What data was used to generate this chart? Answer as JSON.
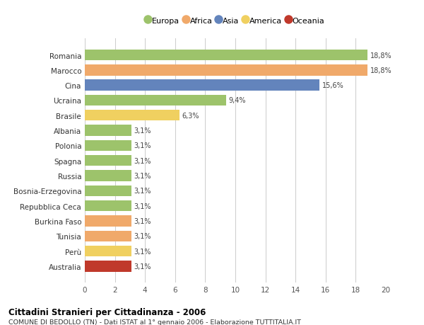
{
  "categories": [
    "Romania",
    "Marocco",
    "Cina",
    "Ucraina",
    "Brasile",
    "Albania",
    "Polonia",
    "Spagna",
    "Russia",
    "Bosnia-Erzegovina",
    "Repubblica Ceca",
    "Burkina Faso",
    "Tunisia",
    "Perù",
    "Australia"
  ],
  "values": [
    18.8,
    18.8,
    15.6,
    9.4,
    6.3,
    3.1,
    3.1,
    3.1,
    3.1,
    3.1,
    3.1,
    3.1,
    3.1,
    3.1,
    3.1
  ],
  "labels": [
    "18,8%",
    "18,8%",
    "15,6%",
    "9,4%",
    "6,3%",
    "3,1%",
    "3,1%",
    "3,1%",
    "3,1%",
    "3,1%",
    "3,1%",
    "3,1%",
    "3,1%",
    "3,1%",
    "3,1%"
  ],
  "colors": [
    "#9dc36b",
    "#f0a96a",
    "#6384bc",
    "#9dc36b",
    "#f0d060",
    "#9dc36b",
    "#9dc36b",
    "#9dc36b",
    "#9dc36b",
    "#9dc36b",
    "#9dc36b",
    "#f0a96a",
    "#f0a96a",
    "#f0d060",
    "#c0392b"
  ],
  "continent_colors": {
    "Europa": "#9dc36b",
    "Africa": "#f0a96a",
    "Asia": "#6384bc",
    "America": "#f0d060",
    "Oceania": "#c0392b"
  },
  "xlim": [
    0,
    20
  ],
  "xticks": [
    0,
    2,
    4,
    6,
    8,
    10,
    12,
    14,
    16,
    18,
    20
  ],
  "title": "Cittadini Stranieri per Cittadinanza - 2006",
  "subtitle": "COMUNE DI BEDOLLO (TN) - Dati ISTAT al 1° gennaio 2006 - Elaborazione TUTTITALIA.IT",
  "background_color": "#ffffff",
  "bar_height": 0.72,
  "grid_color": "#cccccc"
}
